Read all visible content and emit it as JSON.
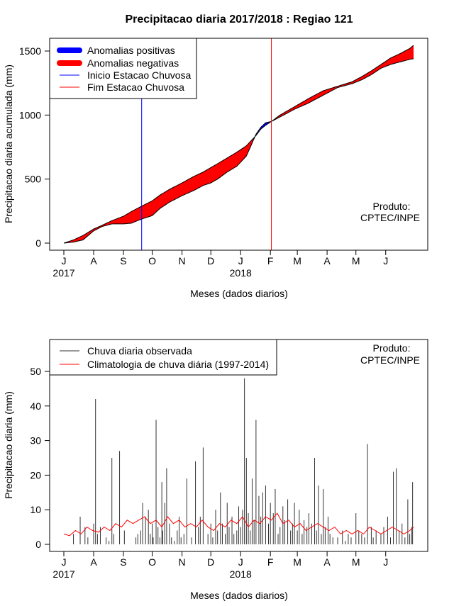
{
  "title": "Precipitacao diaria 2017/2018 : Regiao 121",
  "product_note": [
    "Produto:",
    "CPTEC/INPE"
  ],
  "months": [
    "J",
    "A",
    "S",
    "O",
    "N",
    "D",
    "J",
    "F",
    "M",
    "A",
    "M",
    "J"
  ],
  "year_labels": {
    "first": "2017",
    "second": "2018"
  },
  "chart_data": [
    {
      "type": "area",
      "title": "Precipitacao diaria 2017/2018 : Regiao 121",
      "xlabel": "Meses (dados diarios)",
      "ylabel": "Precipitacao diaria acumulada (mm)",
      "x_unit": "days since 1 Jul 2017",
      "xlim": [
        0,
        365
      ],
      "ylim": [
        0,
        1500
      ],
      "yticks": [
        0,
        500,
        1000,
        1500
      ],
      "grid": false,
      "legend_position": "top-left",
      "legend": [
        {
          "label": "Anomalias positivas",
          "color": "#0000ff",
          "kind": "thick"
        },
        {
          "label": "Anomalias negativas",
          "color": "#ff0000",
          "kind": "thick"
        },
        {
          "label": "Inicio Estacao Chuvosa",
          "color": "#0000ff",
          "kind": "thin"
        },
        {
          "label": "Fim Estacao Chuvosa",
          "color": "#ff0000",
          "kind": "thin"
        }
      ],
      "rainy_season_start_day": 81,
      "rainy_season_end_day": 216,
      "series": [
        {
          "name": "observado",
          "x": [
            0,
            10,
            20,
            31,
            40,
            50,
            62,
            70,
            80,
            92,
            100,
            110,
            123,
            135,
            145,
            153,
            160,
            170,
            180,
            190,
            200,
            205,
            210,
            216,
            225,
            240,
            255,
            270,
            285,
            300,
            310,
            320,
            330,
            340,
            350,
            360,
            364
          ],
          "values": [
            0,
            8,
            25,
            95,
            130,
            150,
            150,
            155,
            185,
            215,
            270,
            320,
            370,
            410,
            450,
            470,
            500,
            555,
            600,
            680,
            850,
            905,
            940,
            950,
            985,
            1045,
            1095,
            1155,
            1215,
            1245,
            1275,
            1315,
            1365,
            1395,
            1415,
            1435,
            1440
          ]
        },
        {
          "name": "climatologia",
          "x": [
            0,
            10,
            20,
            31,
            40,
            50,
            62,
            70,
            80,
            92,
            100,
            110,
            123,
            135,
            145,
            153,
            160,
            170,
            180,
            190,
            200,
            205,
            210,
            216,
            225,
            240,
            255,
            270,
            285,
            300,
            310,
            320,
            330,
            340,
            350,
            360,
            364
          ],
          "values": [
            0,
            25,
            60,
            110,
            140,
            175,
            210,
            245,
            285,
            330,
            375,
            420,
            470,
            520,
            555,
            590,
            620,
            665,
            710,
            760,
            840,
            890,
            920,
            950,
            1000,
            1065,
            1130,
            1190,
            1225,
            1260,
            1300,
            1345,
            1395,
            1445,
            1480,
            1520,
            1545
          ]
        }
      ]
    },
    {
      "type": "bar",
      "xlabel": "Meses (dados diarios)",
      "ylabel": "Precipitacao diaria (mm)",
      "x_unit": "days since 1 Jul 2017",
      "xlim": [
        0,
        365
      ],
      "ylim": [
        0,
        55
      ],
      "yticks": [
        0,
        10,
        20,
        30,
        40,
        50
      ],
      "grid": false,
      "legend_position": "top-left",
      "legend": [
        {
          "label": "Chuva diaria observada",
          "color": "#333333",
          "kind": "thin"
        },
        {
          "label": "Climatologia de chuva diária (1997-2014)",
          "color": "#ff0000",
          "kind": "thin"
        }
      ],
      "series": [
        {
          "name": "Chuva diaria observada",
          "x": [
            10,
            17,
            22,
            25,
            31,
            33,
            35,
            38,
            44,
            47,
            50,
            52,
            58,
            63,
            75,
            77,
            80,
            82,
            85,
            88,
            90,
            92,
            93,
            96,
            98,
            100,
            102,
            103,
            105,
            107,
            110,
            112,
            115,
            118,
            120,
            122,
            125,
            128,
            133,
            137,
            140,
            142,
            145,
            150,
            153,
            155,
            158,
            160,
            163,
            165,
            168,
            170,
            172,
            175,
            177,
            180,
            182,
            184,
            186,
            188,
            190,
            192,
            194,
            196,
            198,
            200,
            203,
            205,
            207,
            210,
            213,
            215,
            218,
            220,
            223,
            225,
            228,
            230,
            233,
            236,
            238,
            240,
            243,
            245,
            248,
            250,
            253,
            255,
            258,
            261,
            263,
            265,
            268,
            270,
            272,
            275,
            277,
            280,
            285,
            290,
            293,
            296,
            299,
            304,
            307,
            310,
            313,
            316,
            320,
            322,
            325,
            330,
            333,
            337,
            340,
            343,
            346,
            349,
            352,
            355,
            358,
            360,
            362,
            363
          ],
          "values": [
            3,
            8,
            5,
            2,
            6,
            42,
            3,
            5,
            2,
            1,
            25,
            3,
            27,
            4,
            2,
            3,
            4,
            12,
            8,
            10,
            3,
            6,
            2,
            36,
            5,
            2,
            18,
            4,
            12,
            22,
            6,
            2,
            1,
            4,
            8,
            2,
            3,
            19,
            2,
            24,
            5,
            8,
            28,
            3,
            6,
            2,
            10,
            4,
            15,
            6,
            3,
            12,
            5,
            8,
            3,
            4,
            11,
            5,
            10,
            48,
            25,
            9,
            4,
            19,
            7,
            36,
            14,
            8,
            15,
            17,
            6,
            12,
            9,
            16,
            3,
            5,
            11,
            7,
            13,
            4,
            6,
            12,
            4,
            10,
            3,
            7,
            5,
            9,
            6,
            25,
            4,
            17,
            3,
            16,
            5,
            8,
            3,
            2,
            2,
            4,
            1,
            3,
            2,
            9,
            4,
            3,
            2,
            29,
            5,
            2,
            4,
            3,
            5,
            8,
            2,
            21,
            22,
            4,
            6,
            2,
            13,
            3,
            5,
            18
          ]
        },
        {
          "name": "Climatologia de chuva diária (1997-2014)",
          "x": [
            0,
            6,
            12,
            18,
            24,
            30,
            36,
            42,
            48,
            54,
            60,
            66,
            72,
            78,
            84,
            90,
            96,
            102,
            108,
            114,
            120,
            126,
            132,
            138,
            144,
            150,
            156,
            162,
            168,
            174,
            180,
            186,
            192,
            198,
            204,
            210,
            216,
            222,
            228,
            234,
            240,
            246,
            252,
            258,
            264,
            270,
            276,
            282,
            288,
            294,
            300,
            306,
            312,
            318,
            324,
            330,
            336,
            342,
            348,
            354,
            360,
            364
          ],
          "values": [
            3,
            2.5,
            4,
            3,
            5,
            4,
            3.5,
            5,
            4,
            6,
            5,
            7,
            6,
            7,
            8,
            6,
            7,
            5,
            8,
            6,
            7,
            5,
            6,
            5,
            7,
            5,
            4,
            6,
            5,
            7,
            6,
            8,
            5,
            7,
            6,
            8,
            7,
            9,
            6,
            7,
            5,
            6,
            4,
            5,
            6,
            5,
            4,
            5,
            3,
            4,
            3,
            4,
            3,
            5,
            4,
            3,
            4,
            5,
            4,
            3,
            4,
            5
          ]
        }
      ]
    }
  ]
}
